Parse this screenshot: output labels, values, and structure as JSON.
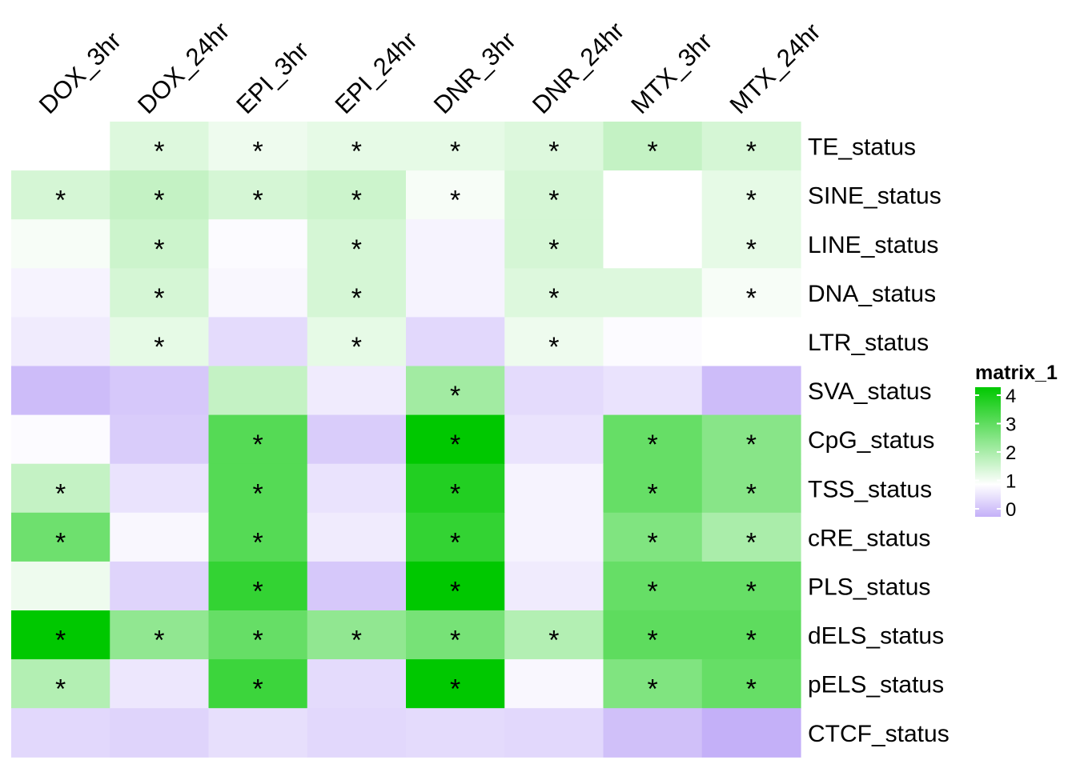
{
  "chart_data": {
    "type": "heatmap",
    "title": "",
    "columns": [
      "DOX_3hr",
      "DOX_24hr",
      "EPI_3hr",
      "EPI_24hr",
      "DNR_3hr",
      "DNR_24hr",
      "MTX_3hr",
      "MTX_24hr"
    ],
    "rows": [
      "TE_status",
      "SINE_status",
      "LINE_status",
      "DNA_status",
      "LTR_status",
      "SVA_status",
      "CpG_status",
      "TSS_status",
      "cRE_status",
      "PLS_status",
      "dELS_status",
      "pELS_status",
      "CTCF_status"
    ],
    "values": [
      [
        1.0,
        1.4,
        1.2,
        1.3,
        1.3,
        1.4,
        1.7,
        1.5
      ],
      [
        1.5,
        1.7,
        1.5,
        1.6,
        1.1,
        1.5,
        1.0,
        1.3
      ],
      [
        1.1,
        1.6,
        0.95,
        1.5,
        0.85,
        1.5,
        1.0,
        1.3
      ],
      [
        0.85,
        1.5,
        0.9,
        1.5,
        0.85,
        1.4,
        1.4,
        1.1
      ],
      [
        0.75,
        1.3,
        0.55,
        1.3,
        0.5,
        1.2,
        0.95,
        1.0
      ],
      [
        0.15,
        0.3,
        1.7,
        0.75,
        2.1,
        0.55,
        0.65,
        0.15
      ],
      [
        0.95,
        0.35,
        3.0,
        0.35,
        4.0,
        0.65,
        2.8,
        2.4
      ],
      [
        1.7,
        0.65,
        3.0,
        0.65,
        3.6,
        0.85,
        2.8,
        2.4
      ],
      [
        2.7,
        0.9,
        3.0,
        0.75,
        3.4,
        0.85,
        2.5,
        2.0
      ],
      [
        1.2,
        0.45,
        3.4,
        0.3,
        4.0,
        0.75,
        2.8,
        2.8
      ],
      [
        4.0,
        2.3,
        2.8,
        2.3,
        2.6,
        1.9,
        2.9,
        2.9
      ],
      [
        1.9,
        0.7,
        3.3,
        0.55,
        4.0,
        0.9,
        2.5,
        2.8
      ],
      [
        0.5,
        0.45,
        0.6,
        0.5,
        0.55,
        0.5,
        0.2,
        0.0
      ]
    ],
    "significant": [
      [
        false,
        true,
        true,
        true,
        true,
        true,
        true,
        true
      ],
      [
        true,
        true,
        true,
        true,
        true,
        true,
        false,
        true
      ],
      [
        false,
        true,
        false,
        true,
        false,
        true,
        false,
        true
      ],
      [
        false,
        true,
        false,
        true,
        false,
        true,
        false,
        true
      ],
      [
        false,
        true,
        false,
        true,
        false,
        true,
        false,
        false
      ],
      [
        false,
        false,
        false,
        false,
        true,
        false,
        false,
        false
      ],
      [
        false,
        false,
        true,
        false,
        true,
        false,
        true,
        true
      ],
      [
        true,
        false,
        true,
        false,
        true,
        false,
        true,
        true
      ],
      [
        true,
        false,
        true,
        false,
        true,
        false,
        true,
        true
      ],
      [
        false,
        false,
        true,
        false,
        true,
        false,
        true,
        true
      ],
      [
        true,
        true,
        true,
        true,
        true,
        true,
        true,
        true
      ],
      [
        true,
        false,
        true,
        false,
        true,
        false,
        true,
        true
      ],
      [
        false,
        false,
        false,
        false,
        false,
        false,
        false,
        false
      ]
    ],
    "significance_mark": "*",
    "color_scale": {
      "stops": [
        0,
        1,
        4
      ],
      "colors": [
        "#c4b0f8",
        "#ffffff",
        "#00c800"
      ]
    },
    "legend": {
      "title": "matrix_1",
      "ticks": [
        4,
        3,
        2,
        1,
        0
      ],
      "position": "right"
    }
  }
}
